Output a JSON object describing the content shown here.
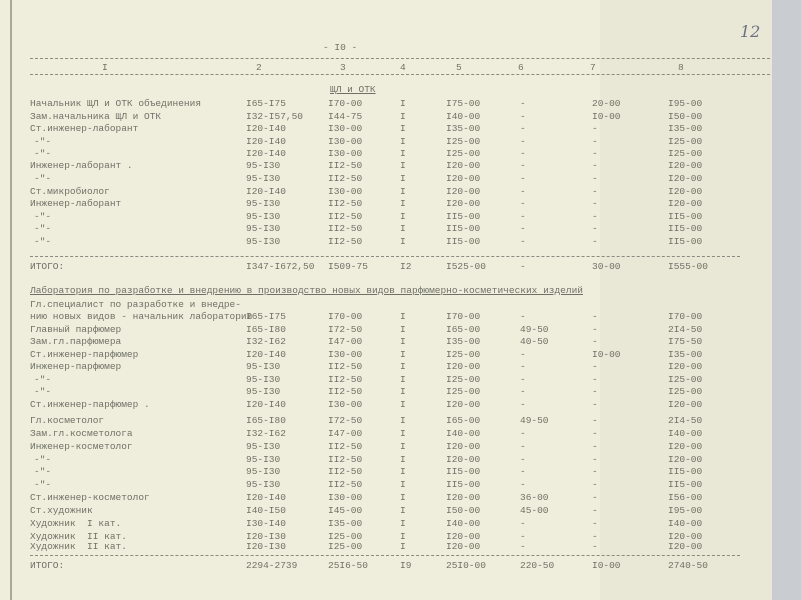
{
  "page_number": "- I0 -",
  "handwritten_number": "12",
  "column_headers": [
    "I",
    "2",
    "3",
    "4",
    "5",
    "6",
    "7",
    "8"
  ],
  "section1": {
    "title": "ЩЛ и ОТК",
    "rows": [
      [
        "Начальник ЩЛ и ОТК объединения",
        "I65-I75",
        "I70-00",
        "I",
        "I75-00",
        "-",
        "20-00",
        "I95-00"
      ],
      [
        "Зам.начальника ЩЛ и ОТК",
        "I32-I57,50",
        "I44-75",
        "I",
        "I40-00",
        "-",
        "I0-00",
        "I50-00"
      ],
      [
        "Ст.инженер-лаборант",
        "I20-I40",
        "I30-00",
        "I",
        "I35-00",
        "-",
        "-",
        "I35-00"
      ],
      [
        "-\"-",
        "I20-I40",
        "I30-00",
        "I",
        "I25-00",
        "-",
        "-",
        "I25-00"
      ],
      [
        "-\"-",
        "I20-I40",
        "I30-00",
        "I",
        "I25-00",
        "-",
        "-",
        "I25-00"
      ],
      [
        "Инженер-лаборант .",
        "95-I30",
        "II2-50",
        "I",
        "I20-00",
        "-",
        "-",
        "I20-00"
      ],
      [
        "-\"-",
        "95-I30",
        "II2-50",
        "I",
        "I20-00",
        "-",
        "-",
        "I20-00"
      ],
      [
        "Ст.микробиолог",
        "I20-I40",
        "I30-00",
        "I",
        "I20-00",
        "-",
        "-",
        "I20-00"
      ],
      [
        "Инженер-лаборант",
        "95-I30",
        "II2-50",
        "I",
        "I20-00",
        "-",
        "-",
        "I20-00"
      ],
      [
        "-\"-",
        "95-I30",
        "II2-50",
        "I",
        "II5-00",
        "-",
        "-",
        "II5-00"
      ],
      [
        "-\"-",
        "95-I30",
        "II2-50",
        "I",
        "II5-00",
        "-",
        "-",
        "II5-00"
      ],
      [
        "-\"-",
        "95-I30",
        "II2-50",
        "I",
        "II5-00",
        "-",
        "-",
        "II5-00"
      ]
    ],
    "total": [
      "ИТОГО:",
      "I347-I672,50",
      "I509-75",
      "I2",
      "I525-00",
      "-",
      "30-00",
      "I555-00"
    ]
  },
  "section2": {
    "title": "Лаборатория по разработке и внедрению в производство новых видов парфюмерно-косметических изделий",
    "first_row_line1": "Гл.специалист по разработке и внедре-",
    "rows": [
      [
        "нию новых видов - начальник лаборатории",
        "I65-I75",
        "I70-00",
        "I",
        "I70-00",
        "-",
        "-",
        "I70-00"
      ],
      [
        "Главный парфюмер",
        "I65-I80",
        "I72-50",
        "I",
        "I65-00",
        "49-50",
        "-",
        "2I4-50"
      ],
      [
        "Зам.гл.парфюмера",
        "I32-I62",
        "I47-00",
        "I",
        "I35-00",
        "40-50",
        "-",
        "I75-50"
      ],
      [
        "Ст.инженер-парфюмер",
        "I20-I40",
        "I30-00",
        "I",
        "I25-00",
        "-",
        "I0-00",
        "I35-00"
      ],
      [
        "Инженер-парфюмер",
        "95-I30",
        "II2-50",
        "I",
        "I20-00",
        "-",
        "-",
        "I20-00"
      ],
      [
        "-\"-",
        "95-I30",
        "II2-50",
        "I",
        "I25-00",
        "-",
        "-",
        "I25-00"
      ],
      [
        "-\"-",
        "95-I30",
        "II2-50",
        "I",
        "I25-00",
        "-",
        "-",
        "I25-00"
      ],
      [
        "Ст.инженер-парфюмер .",
        "I20-I40",
        "I30-00",
        "I",
        "I20-00",
        "-",
        "-",
        "I20-00"
      ],
      [
        "Гл.косметолог",
        "I65-I80",
        "I72-50",
        "I",
        "I65-00",
        "49-50",
        "-",
        "2I4-50"
      ],
      [
        "Зам.гл.косметолога",
        "I32-I62",
        "I47-00",
        "I",
        "I40-00",
        "-",
        "-",
        "I40-00"
      ],
      [
        "Инженер-косметолог",
        "95-I30",
        "II2-50",
        "I",
        "I20-00",
        "-",
        "-",
        "I20-00"
      ],
      [
        "-\"-",
        "95-I30",
        "II2-50",
        "I",
        "I20-00",
        "-",
        "-",
        "I20-00"
      ],
      [
        "-\"-",
        "95-I30",
        "II2-50",
        "I",
        "II5-00",
        "-",
        "-",
        "II5-00"
      ],
      [
        "-\"-",
        "95-I30",
        "II2-50",
        "I",
        "II5-00",
        "-",
        "-",
        "II5-00"
      ],
      [
        "Ст.инженер-косметолог",
        "I20-I40",
        "I30-00",
        "I",
        "I20-00",
        "36-00",
        "-",
        "I56-00"
      ],
      [
        "Ст.художник",
        "I40-I50",
        "I45-00",
        "I",
        "I50-00",
        "45-00",
        "-",
        "I95-00"
      ],
      [
        "Художник  I кат.",
        "I30-I40",
        "I35-00",
        "I",
        "I40-00",
        "-",
        "-",
        "I40-00"
      ],
      [
        "Художник  II кат.",
        "I20-I30",
        "I25-00",
        "I",
        "I20-00",
        "-",
        "-",
        "I20-00"
      ],
      [
        "Художник  II кат.",
        "I20-I30",
        "I25-00",
        "I",
        "I20-00",
        "-",
        "-",
        "I20-00"
      ]
    ],
    "total": [
      "ИТОГО:",
      "2294-2739",
      "25I6-50",
      "I9",
      "25I0-00",
      "220-50",
      "I0-00",
      "2740-50"
    ]
  }
}
